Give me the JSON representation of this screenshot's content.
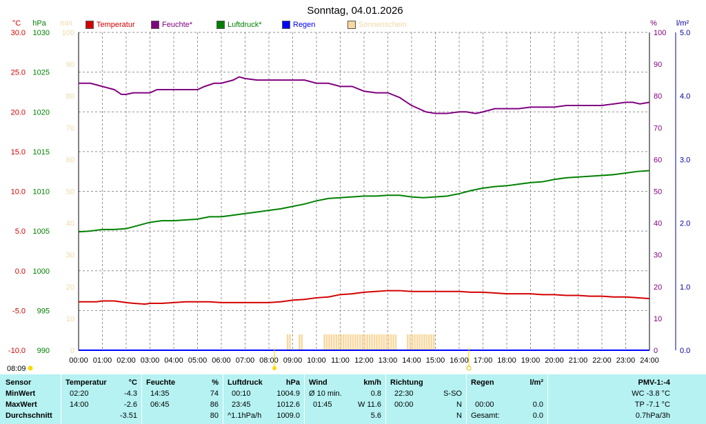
{
  "title": "Sonntag, 04.01.2026",
  "left_axes": {
    "temp_unit": "°C",
    "pressure_unit": "hPa",
    "minutes_unit": "min"
  },
  "right_axes": {
    "percent_unit": "%",
    "rain_unit": "l/m²"
  },
  "legend": [
    {
      "label": "Temperatur",
      "color": "#d40000"
    },
    {
      "label": "Feuchte*",
      "color": "#800080"
    },
    {
      "label": "Luftdruck*",
      "color": "#008000"
    },
    {
      "label": "Regen",
      "color": "#0000ff"
    },
    {
      "label": "Sonnenschein",
      "color": "#f8d8a0"
    }
  ],
  "sunrise_time": "08:09",
  "chart_data": {
    "type": "line",
    "title": "Sonntag, 04.01.2026",
    "x_ticks": [
      "00:00",
      "01:00",
      "02:00",
      "03:00",
      "04:00",
      "05:00",
      "06:00",
      "07:00",
      "08:00",
      "09:00",
      "10:00",
      "11:00",
      "12:00",
      "13:00",
      "14:00",
      "15:00",
      "16:00",
      "17:00",
      "18:00",
      "19:00",
      "20:00",
      "21:00",
      "22:00",
      "23:00",
      "24:00"
    ],
    "xlim": [
      0,
      24
    ],
    "grid": true,
    "axes": {
      "temperature": {
        "label": "°C",
        "ylim": [
          -10,
          30
        ],
        "ticks": [
          "-10.0",
          "-5.0",
          "0.0",
          "5.0",
          "10.0",
          "15.0",
          "20.0",
          "25.0",
          "30.0"
        ],
        "color": "#d40000"
      },
      "pressure": {
        "label": "hPa",
        "ylim": [
          990,
          1030
        ],
        "ticks": [
          "990",
          "995",
          "1000",
          "1005",
          "1010",
          "1015",
          "1020",
          "1025",
          "1030"
        ],
        "color": "#008000"
      },
      "sunshine_min": {
        "label": "min",
        "ylim": [
          0,
          100
        ],
        "ticks": [
          "0",
          "10",
          "20",
          "30",
          "40",
          "50",
          "60",
          "70",
          "80",
          "90",
          "100"
        ],
        "color": "#f0d8a8"
      },
      "humidity": {
        "label": "%",
        "ylim": [
          0,
          100
        ],
        "ticks": [
          "0",
          "10",
          "20",
          "30",
          "40",
          "50",
          "60",
          "70",
          "80",
          "90",
          "100"
        ],
        "color": "#800080"
      },
      "rain": {
        "label": "l/m²",
        "ylim": [
          0,
          5
        ],
        "ticks": [
          "0.0",
          "1.0",
          "2.0",
          "3.0",
          "4.0",
          "5.0"
        ],
        "color": "#0000a0"
      }
    },
    "series": [
      {
        "name": "Temperatur",
        "axis": "temperature",
        "color": "#d40000",
        "x": [
          0,
          0.75,
          1,
          1.5,
          2,
          2.33,
          2.8,
          3,
          3.5,
          4,
          4.5,
          5,
          5.5,
          6,
          6.5,
          7,
          7.5,
          8,
          8.5,
          9,
          9.5,
          10,
          10.5,
          11,
          11.5,
          12,
          12.5,
          13,
          13.5,
          14,
          14.5,
          15,
          15.5,
          16,
          16.5,
          17,
          17.5,
          18,
          18.5,
          19,
          19.5,
          20,
          20.5,
          21,
          21.5,
          22,
          22.5,
          23,
          23.5,
          24
        ],
        "y": [
          -3.9,
          -3.9,
          -3.8,
          -3.8,
          -4.0,
          -4.1,
          -4.2,
          -4.1,
          -4.1,
          -4.0,
          -3.9,
          -3.9,
          -3.9,
          -4.0,
          -4.0,
          -4.0,
          -4.0,
          -4.0,
          -3.9,
          -3.7,
          -3.6,
          -3.4,
          -3.3,
          -3.0,
          -2.9,
          -2.7,
          -2.6,
          -2.5,
          -2.5,
          -2.6,
          -2.6,
          -2.6,
          -2.6,
          -2.6,
          -2.7,
          -2.7,
          -2.8,
          -2.9,
          -2.9,
          -2.9,
          -3.0,
          -3.0,
          -3.1,
          -3.1,
          -3.2,
          -3.2,
          -3.3,
          -3.3,
          -3.4,
          -3.5
        ]
      },
      {
        "name": "Feuchte*",
        "axis": "humidity",
        "color": "#800080",
        "x": [
          0,
          0.5,
          1,
          1.5,
          1.8,
          2,
          2.3,
          3,
          3.3,
          3.7,
          4,
          4.5,
          5,
          5.3,
          5.7,
          6,
          6.5,
          6.75,
          7,
          7.5,
          8,
          8.5,
          9,
          9.5,
          10,
          10.5,
          11,
          11.5,
          12,
          12.5,
          13,
          13.5,
          14,
          14.3,
          14.6,
          15,
          15.5,
          16,
          16.3,
          16.7,
          17,
          17.5,
          18,
          18.5,
          19,
          19.5,
          20,
          20.5,
          21,
          21.5,
          22,
          22.5,
          23,
          23.3,
          23.6,
          24
        ],
        "y": [
          84,
          84,
          83,
          82,
          80.5,
          80.5,
          81,
          81,
          82,
          82,
          82,
          82,
          82,
          83,
          84,
          84,
          85,
          86,
          85.5,
          85,
          85,
          85,
          85,
          85,
          84,
          84,
          83,
          83,
          81.5,
          81,
          81,
          79.5,
          77,
          76,
          75,
          74.5,
          74.5,
          75,
          75,
          74.5,
          75,
          76,
          76,
          76,
          76.5,
          76.5,
          76.5,
          77,
          77,
          77,
          77,
          77.5,
          78,
          78,
          77.5,
          78
        ]
      },
      {
        "name": "Luftdruck*",
        "axis": "pressure",
        "color": "#008000",
        "x": [
          0,
          0.5,
          1,
          1.5,
          2,
          2.5,
          3,
          3.5,
          4,
          4.5,
          5,
          5.5,
          6,
          6.5,
          7,
          7.5,
          8,
          8.5,
          9,
          9.5,
          10,
          10.5,
          11,
          11.5,
          12,
          12.5,
          13,
          13.5,
          14,
          14.5,
          15,
          15.5,
          16,
          16.5,
          17,
          17.5,
          18,
          18.5,
          19,
          19.5,
          20,
          20.5,
          21,
          21.5,
          22,
          22.5,
          23,
          23.5,
          24
        ],
        "y": [
          1004.9,
          1005.0,
          1005.2,
          1005.2,
          1005.3,
          1005.7,
          1006.1,
          1006.3,
          1006.3,
          1006.4,
          1006.5,
          1006.8,
          1006.8,
          1007.0,
          1007.2,
          1007.4,
          1007.6,
          1007.8,
          1008.1,
          1008.4,
          1008.8,
          1009.1,
          1009.2,
          1009.3,
          1009.4,
          1009.4,
          1009.5,
          1009.5,
          1009.3,
          1009.2,
          1009.3,
          1009.4,
          1009.7,
          1010.1,
          1010.4,
          1010.6,
          1010.7,
          1010.9,
          1011.1,
          1011.2,
          1011.5,
          1011.7,
          1011.8,
          1011.9,
          1012.0,
          1012.1,
          1012.3,
          1012.5,
          1012.6
        ]
      },
      {
        "name": "Regen",
        "axis": "rain",
        "color": "#0000ff",
        "x": [
          0,
          24
        ],
        "y": [
          0,
          0
        ]
      },
      {
        "name": "Sonnenschein",
        "axis": "sunshine_min",
        "color": "#f8d8a0",
        "kind": "bar",
        "x": [
          8.8,
          8.9,
          9.3,
          9.4,
          10.35,
          10.45,
          10.55,
          10.65,
          10.75,
          10.85,
          10.95,
          11.05,
          11.15,
          11.25,
          11.35,
          11.45,
          11.55,
          11.65,
          11.75,
          11.85,
          11.95,
          12.05,
          12.15,
          12.25,
          12.35,
          12.45,
          12.55,
          12.65,
          12.75,
          12.85,
          12.95,
          13.05,
          13.15,
          13.25,
          13.35,
          13.85,
          13.95,
          14.05,
          14.15,
          14.25,
          14.35,
          14.45,
          14.55,
          14.65,
          14.75,
          14.85,
          14.95
        ],
        "y": [
          5,
          5,
          5,
          5,
          5,
          5,
          5,
          5,
          5,
          5,
          5,
          5,
          5,
          5,
          5,
          5,
          5,
          5,
          5,
          5,
          5,
          5,
          5,
          5,
          5,
          5,
          5,
          5,
          5,
          5,
          5,
          5,
          5,
          5,
          5,
          5,
          5,
          5,
          5,
          5,
          5,
          5,
          5,
          5,
          5,
          5,
          5
        ]
      }
    ]
  },
  "stats": {
    "sensor_header": "Sensor",
    "minwert_label": "MinWert",
    "maxwert_label": "MaxWert",
    "durchschnitt_label": "Durchschnitt",
    "temperature": {
      "title": "Temperatur",
      "unit": "°C",
      "min_time": "02:20",
      "min_value": "-4.3",
      "max_time": "14:00",
      "max_value": "-2.6",
      "avg_value": "-3.51"
    },
    "humidity": {
      "title": "Feuchte",
      "unit": "%",
      "min_time": "14:35",
      "min_value": "74",
      "max_time": "06:45",
      "max_value": "86",
      "avg_value": "80"
    },
    "pressure": {
      "title": "Luftdruck",
      "unit": "hPa",
      "min_time": "00:10",
      "min_value": "1004.9",
      "max_time": "23:45",
      "max_value": "1012.6",
      "trend": "^1.1hPa/h",
      "avg_value": "1009.0"
    },
    "wind": {
      "title": "Wind",
      "unit": "km/h",
      "row1_label": "Ø 10 min.",
      "row1_value": "0.8",
      "row2_time": "01:45",
      "row2_value": "W 11.6",
      "avg_value": "5.6"
    },
    "direction": {
      "title": "Richtung",
      "row1_time": "22:30",
      "row1_value": "S-SO",
      "row2_time": "00:00",
      "row2_value": "N",
      "row3_value": "N"
    },
    "rain": {
      "title": "Regen",
      "unit": "l/m²",
      "row2_time": "00:00",
      "row2_value": "0.0",
      "total_label": "Gesamt:",
      "total_value": "0.0"
    },
    "pmv": {
      "title": "PMV-1:-4",
      "wc": "WC -3.8 °C",
      "tp": "TP -7.1 °C",
      "trend": "0.7hPa/3h"
    }
  }
}
